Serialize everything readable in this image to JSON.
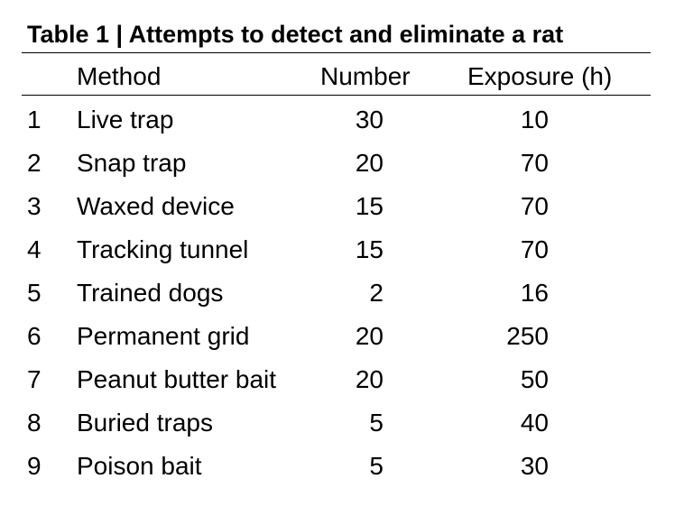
{
  "table": {
    "title": "Table 1 | Attempts to detect and eliminate a rat",
    "headers": {
      "method": "Method",
      "number": "Number",
      "exposure": "Exposure (h)"
    },
    "rows": [
      {
        "index": "1",
        "method": "Live trap",
        "number": "30",
        "exposure": "10"
      },
      {
        "index": "2",
        "method": "Snap trap",
        "number": "20",
        "exposure": "70"
      },
      {
        "index": "3",
        "method": "Waxed device",
        "number": "15",
        "exposure": "70"
      },
      {
        "index": "4",
        "method": "Tracking tunnel",
        "number": "15",
        "exposure": "70"
      },
      {
        "index": "5",
        "method": "Trained dogs",
        "number": "2",
        "exposure": "16"
      },
      {
        "index": "6",
        "method": "Permanent grid",
        "number": "20",
        "exposure": "250"
      },
      {
        "index": "7",
        "method": "Peanut butter bait",
        "number": "20",
        "exposure": "50"
      },
      {
        "index": "8",
        "method": "Buried traps",
        "number": "5",
        "exposure": "40"
      },
      {
        "index": "9",
        "method": "Poison bait",
        "number": "5",
        "exposure": "30"
      }
    ]
  }
}
